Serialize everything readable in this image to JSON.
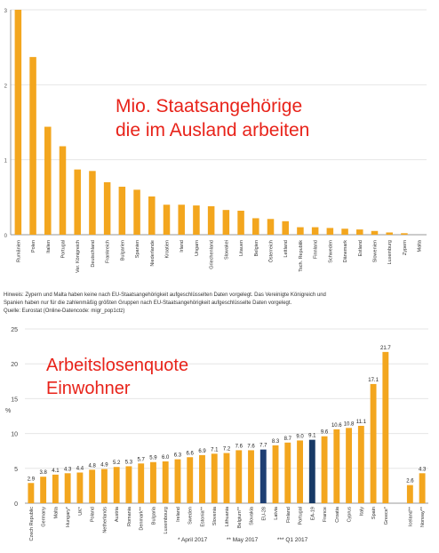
{
  "colors": {
    "bar": "#f3a61e",
    "highlight_eu": "#1e3f73",
    "highlight_ea": "#183a66",
    "axis": "#999999",
    "grid": "#e6e6e6",
    "overlay_text": "#e8231a"
  },
  "top_overlay": {
    "line1": "Mio. Staatsangehörige",
    "line2": "die im Ausland arbeiten"
  },
  "bottom_overlay": {
    "line1": "Arbeitslosenquote",
    "line2": "Einwohner"
  },
  "notes": [
    "Hinweis: Zypern und Malta haben keine nach EU-Staatsangehörigkeit aufgeschlüsselten Daten vorgelegt. Das Vereinigte Königreich und",
    "Spanien haben nur für die zahlenmäßig größten Gruppen nach EU-Staatsangehörigkeit aufgeschlüsselte Daten vorgelegt.",
    "Quelle: Eurostat (Online-Datencode: migr_pop1ctz)"
  ],
  "footnotes": {
    "f1": "*  April 2017",
    "f2": "**  May 2017",
    "f3": "***  Q1 2017"
  },
  "chart_data": [
    {
      "type": "bar",
      "title": "",
      "ylim": [
        0,
        3
      ],
      "yticks": [
        0,
        1,
        2,
        3
      ],
      "grid": true,
      "categories": [
        "Rumänien",
        "Polen",
        "Italien",
        "Portugal",
        "Ver. Königreich",
        "Deutschland",
        "Frankreich",
        "Bulgarien",
        "Spanien",
        "Niederlande",
        "Kroatien",
        "Irland",
        "Ungarn",
        "Griechenland",
        "Slowakei",
        "Litauen",
        "Belgien",
        "Österreich",
        "Lettland",
        "Tsch. Republik",
        "Finnland",
        "Schweden",
        "Dänemark",
        "Estland",
        "Slowenien",
        "Luxemburg",
        "Zypern",
        "Malta"
      ],
      "values": [
        3.0,
        2.37,
        1.44,
        1.18,
        0.87,
        0.85,
        0.7,
        0.64,
        0.6,
        0.51,
        0.4,
        0.4,
        0.39,
        0.38,
        0.33,
        0.32,
        0.22,
        0.21,
        0.18,
        0.1,
        0.1,
        0.09,
        0.08,
        0.07,
        0.05,
        0.03,
        0.02,
        0.0
      ]
    },
    {
      "type": "bar",
      "title": "",
      "ylabel": "%",
      "ylim": [
        0,
        25
      ],
      "yticks": [
        0,
        5,
        10,
        15,
        20,
        25
      ],
      "grid": true,
      "categories": [
        "Czech Republic",
        "Germany",
        "Malta",
        "Hungary*",
        "UK*",
        "Poland",
        "Netherlands",
        "Austria",
        "Romania",
        "Denmark**",
        "Bulgaria",
        "Luxembourg",
        "Ireland",
        "Sweden",
        "Estonia**",
        "Slovenia",
        "Lithuania",
        "Belgium**",
        "Slovakia",
        "EU-28",
        "Latvia",
        "Finland",
        "Portugal",
        "EA-19",
        "France",
        "Croatia",
        "Cyprus",
        "Italy",
        "Spain",
        "Greece*",
        "",
        "Iceland**",
        "Norway**"
      ],
      "values": [
        2.9,
        3.8,
        4.1,
        4.3,
        4.4,
        4.8,
        4.9,
        5.2,
        5.3,
        5.7,
        5.9,
        6.0,
        6.3,
        6.6,
        6.9,
        7.1,
        7.2,
        7.6,
        7.6,
        7.7,
        8.3,
        8.7,
        9.0,
        9.1,
        9.6,
        10.6,
        10.8,
        11.1,
        17.1,
        21.7,
        null,
        2.6,
        4.3
      ],
      "labels": [
        "2.9",
        "3.8",
        "4.1",
        "4.3",
        "4.4",
        "4.8",
        "4.9",
        "5.2",
        "5.3",
        "5.7",
        "5.9",
        "6.0",
        "6.3",
        "6.6",
        "6.9",
        "7.1",
        "7.2",
        "7.6",
        "7.6",
        "7.7",
        "8.3",
        "8.7",
        "9.0",
        "9.1",
        "9.6",
        "10.6",
        "10.8",
        "11.1",
        "17.1",
        "21.7",
        "",
        "2.6",
        "4.3"
      ],
      "highlight": {
        "EU-28": "eu",
        "EA-19": "ea"
      }
    }
  ]
}
